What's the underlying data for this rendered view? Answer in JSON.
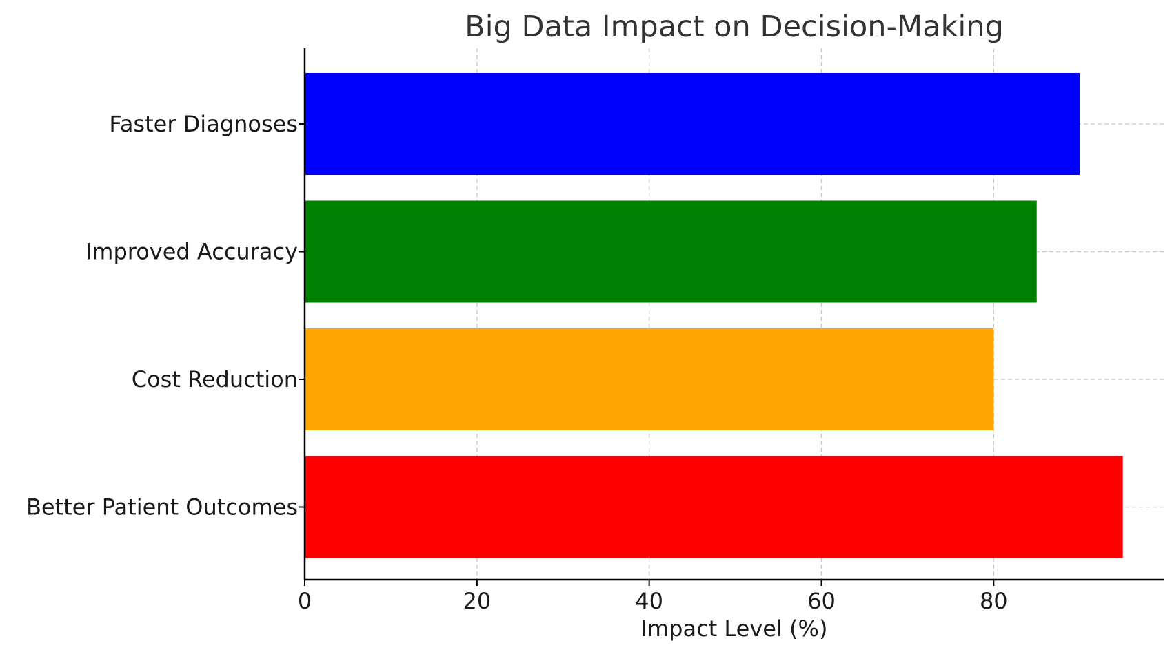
{
  "chart_data": {
    "type": "bar",
    "orientation": "horizontal",
    "title": "Big Data Impact on Decision-Making",
    "xlabel": "Impact Level (%)",
    "ylabel": "",
    "categories": [
      "Faster Diagnoses",
      "Improved Accuracy",
      "Cost Reduction",
      "Better Patient Outcomes"
    ],
    "values": [
      90,
      85,
      80,
      95
    ],
    "colors": [
      "#0000ff",
      "#008000",
      "#ffa500",
      "#ff0000"
    ],
    "xlim": [
      0,
      99.75
    ],
    "xticks": [
      0,
      20,
      40,
      60,
      80
    ],
    "grid": true,
    "legend": "none"
  }
}
